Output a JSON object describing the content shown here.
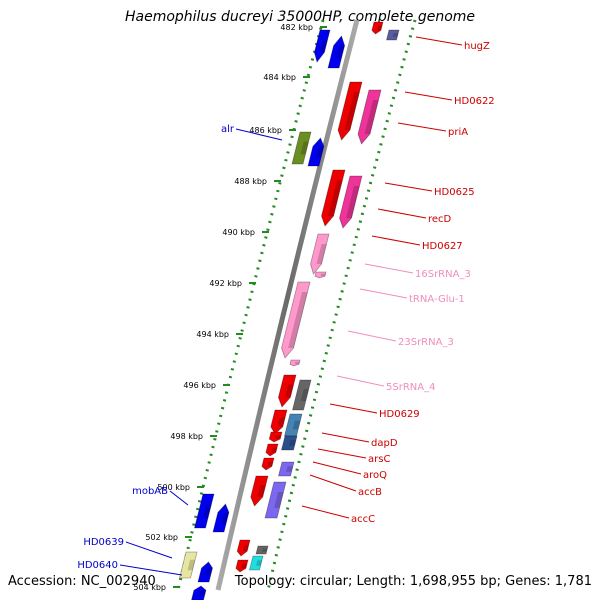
{
  "title": "Haemophilus ducreyi 35000HP, complete genome",
  "footer": {
    "accession": "Accession: NC_002940",
    "summary": "Topology: circular; Length: 1,698,955 bp; Genes: 1,781"
  },
  "ticks": [
    "482 kbp",
    "484 kbp",
    "486 kbp",
    "488 kbp",
    "490 kbp",
    "492 kbp",
    "494 kbp",
    "496 kbp",
    "498 kbp",
    "500 kbp",
    "502 kbp",
    "504 kbp"
  ],
  "right_labels": [
    {
      "text": "hugZ",
      "color": "#cc0000"
    },
    {
      "text": "HD0622",
      "color": "#cc0000"
    },
    {
      "text": "priA",
      "color": "#cc0000"
    },
    {
      "text": "HD0625",
      "color": "#cc0000"
    },
    {
      "text": "recD",
      "color": "#cc0000"
    },
    {
      "text": "HD0627",
      "color": "#cc0000"
    },
    {
      "text": "16SrRNA_3",
      "color": "#f08cbe"
    },
    {
      "text": "tRNA-Glu-1",
      "color": "#f08cbe"
    },
    {
      "text": "23SrRNA_3",
      "color": "#f08cbe"
    },
    {
      "text": "5SrRNA_4",
      "color": "#f08cbe"
    },
    {
      "text": "HD0629",
      "color": "#cc0000"
    },
    {
      "text": "dapD",
      "color": "#cc0000"
    },
    {
      "text": "arsC",
      "color": "#cc0000"
    },
    {
      "text": "aroQ",
      "color": "#cc0000"
    },
    {
      "text": "accB",
      "color": "#cc0000"
    },
    {
      "text": "accC",
      "color": "#cc0000"
    }
  ],
  "left_labels": [
    {
      "text": "alr",
      "color": "#0000cc"
    },
    {
      "text": "mobAB",
      "color": "#0000cc"
    },
    {
      "text": "HD0639",
      "color": "#0000cc"
    },
    {
      "text": "HD0640",
      "color": "#0000cc"
    }
  ],
  "colors": {
    "forward_cds": "#0000ee",
    "reverse_cds": "#ee0000",
    "rrna": "#ff99cc",
    "backbone": "#808080",
    "tick": "#228b22",
    "other_gray": "#666666",
    "steel_blue": "#4682b4",
    "slate": "#7b68ee",
    "olive": "#6b8e23",
    "khaki": "#e6e6a0",
    "cyan": "#22dddd"
  }
}
